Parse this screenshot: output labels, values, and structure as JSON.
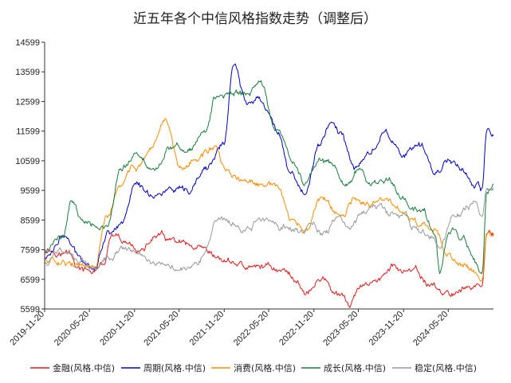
{
  "chart_data": {
    "type": "line",
    "title": "近五年各个中信风格指数走势（调整后）",
    "xlabel": "",
    "ylabel": "",
    "ylim": [
      5599,
      14599
    ],
    "yticks": [
      5599,
      6599,
      7599,
      8599,
      9599,
      10599,
      11599,
      12599,
      13599,
      14599
    ],
    "xticks": [
      "2019-11-20",
      "2020-05-20",
      "2020-11-20",
      "2021-05-20",
      "2021-11-20",
      "2022-05-20",
      "2022-11-20",
      "2023-05-20",
      "2023-11-20",
      "2024-05-20"
    ],
    "x_start": "2019-11-20",
    "x_end": "2024-11-20",
    "legend_position": "bottom",
    "series": [
      {
        "name": "金融(风格.中信)",
        "color": "#e41a1c",
        "anchors": [
          [
            0.0,
            7650
          ],
          [
            0.05,
            7500
          ],
          [
            0.08,
            6900
          ],
          [
            0.1,
            6800
          ],
          [
            0.13,
            7050
          ],
          [
            0.15,
            7950
          ],
          [
            0.18,
            7700
          ],
          [
            0.22,
            7600
          ],
          [
            0.25,
            8050
          ],
          [
            0.3,
            7750
          ],
          [
            0.34,
            7450
          ],
          [
            0.38,
            7200
          ],
          [
            0.42,
            7150
          ],
          [
            0.46,
            6950
          ],
          [
            0.5,
            7050
          ],
          [
            0.53,
            6900
          ],
          [
            0.56,
            6600
          ],
          [
            0.58,
            6200
          ],
          [
            0.62,
            6600
          ],
          [
            0.66,
            5950
          ],
          [
            0.68,
            5700
          ],
          [
            0.7,
            6200
          ],
          [
            0.74,
            6600
          ],
          [
            0.78,
            7000
          ],
          [
            0.82,
            6800
          ],
          [
            0.86,
            6400
          ],
          [
            0.9,
            6050
          ],
          [
            0.93,
            6300
          ],
          [
            0.96,
            6400
          ],
          [
            0.975,
            6300
          ],
          [
            0.985,
            8200
          ],
          [
            1.0,
            8100
          ]
        ]
      },
      {
        "name": "周期(风格.中信)",
        "color": "#0000cd",
        "anchors": [
          [
            0.0,
            7300
          ],
          [
            0.04,
            8100
          ],
          [
            0.08,
            7300
          ],
          [
            0.11,
            7100
          ],
          [
            0.14,
            8200
          ],
          [
            0.17,
            8500
          ],
          [
            0.2,
            9800
          ],
          [
            0.24,
            9500
          ],
          [
            0.28,
            9600
          ],
          [
            0.32,
            9400
          ],
          [
            0.36,
            10300
          ],
          [
            0.4,
            11200
          ],
          [
            0.42,
            13800
          ],
          [
            0.45,
            12500
          ],
          [
            0.48,
            12800
          ],
          [
            0.52,
            11600
          ],
          [
            0.55,
            10200
          ],
          [
            0.58,
            9500
          ],
          [
            0.61,
            11000
          ],
          [
            0.64,
            12000
          ],
          [
            0.66,
            11500
          ],
          [
            0.69,
            10300
          ],
          [
            0.72,
            10800
          ],
          [
            0.76,
            11600
          ],
          [
            0.8,
            10800
          ],
          [
            0.84,
            11000
          ],
          [
            0.87,
            10200
          ],
          [
            0.9,
            10700
          ],
          [
            0.93,
            10400
          ],
          [
            0.96,
            9700
          ],
          [
            0.975,
            9500
          ],
          [
            0.985,
            11600
          ],
          [
            1.0,
            11300
          ]
        ]
      },
      {
        "name": "消费(风格.中信)",
        "color": "#ff8c00",
        "anchors": [
          [
            0.0,
            7250
          ],
          [
            0.04,
            7300
          ],
          [
            0.08,
            7000
          ],
          [
            0.11,
            6900
          ],
          [
            0.14,
            8700
          ],
          [
            0.17,
            9700
          ],
          [
            0.2,
            10400
          ],
          [
            0.24,
            10700
          ],
          [
            0.27,
            11900
          ],
          [
            0.3,
            10500
          ],
          [
            0.34,
            10700
          ],
          [
            0.38,
            11100
          ],
          [
            0.4,
            10200
          ],
          [
            0.44,
            9900
          ],
          [
            0.48,
            9700
          ],
          [
            0.52,
            9700
          ],
          [
            0.55,
            8500
          ],
          [
            0.58,
            8200
          ],
          [
            0.62,
            9300
          ],
          [
            0.66,
            8600
          ],
          [
            0.69,
            9300
          ],
          [
            0.72,
            9000
          ],
          [
            0.76,
            9300
          ],
          [
            0.8,
            8800
          ],
          [
            0.84,
            8400
          ],
          [
            0.87,
            8100
          ],
          [
            0.9,
            7400
          ],
          [
            0.93,
            7100
          ],
          [
            0.96,
            6900
          ],
          [
            0.975,
            6800
          ],
          [
            0.985,
            8300
          ],
          [
            1.0,
            8000
          ]
        ]
      },
      {
        "name": "成长(风格.中信)",
        "color": "#1a7d3d",
        "anchors": [
          [
            0.0,
            7500
          ],
          [
            0.04,
            8100
          ],
          [
            0.06,
            9300
          ],
          [
            0.08,
            8700
          ],
          [
            0.11,
            8600
          ],
          [
            0.14,
            8400
          ],
          [
            0.17,
            10200
          ],
          [
            0.2,
            10800
          ],
          [
            0.24,
            10300
          ],
          [
            0.28,
            11000
          ],
          [
            0.32,
            11000
          ],
          [
            0.36,
            11600
          ],
          [
            0.38,
            12700
          ],
          [
            0.42,
            12900
          ],
          [
            0.45,
            12800
          ],
          [
            0.48,
            13200
          ],
          [
            0.52,
            11600
          ],
          [
            0.55,
            10600
          ],
          [
            0.58,
            9800
          ],
          [
            0.61,
            10700
          ],
          [
            0.64,
            10500
          ],
          [
            0.67,
            9700
          ],
          [
            0.7,
            10300
          ],
          [
            0.73,
            9700
          ],
          [
            0.76,
            9900
          ],
          [
            0.8,
            9400
          ],
          [
            0.84,
            8900
          ],
          [
            0.87,
            8200
          ],
          [
            0.88,
            6900
          ],
          [
            0.9,
            8200
          ],
          [
            0.93,
            7900
          ],
          [
            0.96,
            7200
          ],
          [
            0.975,
            6700
          ],
          [
            0.985,
            9500
          ],
          [
            1.0,
            9600
          ]
        ]
      },
      {
        "name": "稳定(风格.中信)",
        "color": "#999999",
        "anchors": [
          [
            0.0,
            7200
          ],
          [
            0.04,
            7600
          ],
          [
            0.08,
            7200
          ],
          [
            0.11,
            7000
          ],
          [
            0.14,
            7400
          ],
          [
            0.17,
            7700
          ],
          [
            0.2,
            7500
          ],
          [
            0.24,
            7300
          ],
          [
            0.28,
            7100
          ],
          [
            0.3,
            7000
          ],
          [
            0.33,
            7200
          ],
          [
            0.36,
            7600
          ],
          [
            0.38,
            8400
          ],
          [
            0.41,
            8400
          ],
          [
            0.44,
            8200
          ],
          [
            0.47,
            8500
          ],
          [
            0.5,
            8600
          ],
          [
            0.53,
            8400
          ],
          [
            0.56,
            8200
          ],
          [
            0.59,
            8500
          ],
          [
            0.62,
            8200
          ],
          [
            0.65,
            8600
          ],
          [
            0.68,
            8400
          ],
          [
            0.71,
            8800
          ],
          [
            0.74,
            9100
          ],
          [
            0.77,
            8800
          ],
          [
            0.8,
            8700
          ],
          [
            0.83,
            8300
          ],
          [
            0.86,
            8000
          ],
          [
            0.88,
            7600
          ],
          [
            0.91,
            8600
          ],
          [
            0.94,
            8900
          ],
          [
            0.96,
            9200
          ],
          [
            0.975,
            8700
          ],
          [
            0.985,
            9700
          ],
          [
            1.0,
            9600
          ]
        ]
      }
    ]
  }
}
